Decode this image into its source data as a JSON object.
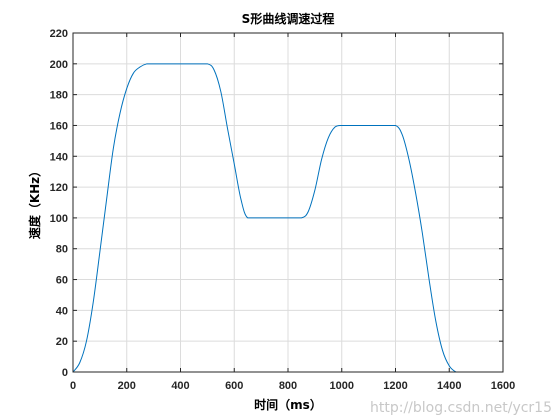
{
  "chart_data": {
    "type": "line",
    "title": "S形曲线调速过程",
    "xlabel": "时间（ms）",
    "ylabel": "速度（KHz）",
    "xlim": [
      0,
      1600
    ],
    "ylim": [
      0,
      220
    ],
    "xticks": [
      0,
      200,
      400,
      600,
      800,
      1000,
      1200,
      1400,
      1600
    ],
    "yticks": [
      0,
      20,
      40,
      60,
      80,
      100,
      120,
      140,
      160,
      180,
      200,
      220
    ],
    "grid": true,
    "line_color": "#0072BD",
    "series": [
      {
        "x": [
          0,
          25,
          50,
          75,
          100,
          125,
          150,
          175,
          200,
          225,
          250,
          275,
          300,
          350,
          400,
          450,
          500,
          525,
          550,
          575,
          600,
          625,
          650,
          700,
          750,
          800,
          850,
          875,
          900,
          925,
          950,
          975,
          1000,
          1050,
          1100,
          1150,
          1200,
          1225,
          1250,
          1275,
          1300,
          1325,
          1350,
          1375,
          1400,
          1425,
          1440
        ],
        "y": [
          0,
          6,
          20,
          45,
          78,
          112,
          145,
          168,
          184,
          194,
          198,
          200,
          200,
          200,
          200,
          200,
          200,
          196,
          182,
          158,
          135,
          112,
          100,
          100,
          100,
          100,
          100,
          104,
          118,
          138,
          152,
          159,
          160,
          160,
          160,
          160,
          160,
          154,
          138,
          116,
          90,
          60,
          33,
          14,
          4,
          0,
          0
        ]
      }
    ]
  },
  "watermark": "http://blog.csdn.net/ycr15"
}
